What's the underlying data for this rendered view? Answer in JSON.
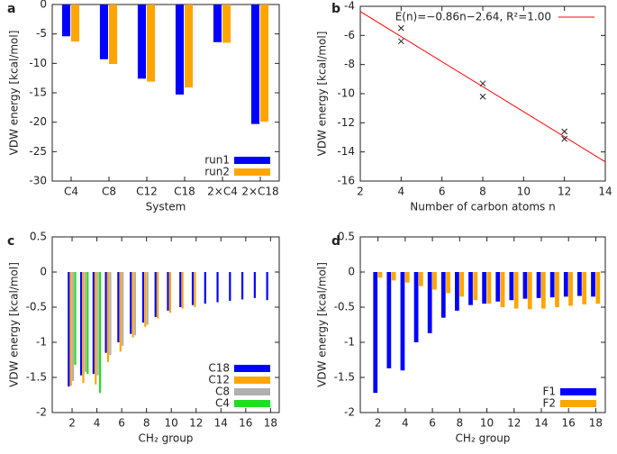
{
  "chart_data": [
    {
      "type": "bar",
      "panel": "a",
      "xlabel": "System",
      "ylabel": "VDW energy [kcal/mol]",
      "categories": [
        "C4",
        "C8",
        "C12",
        "C18",
        "2×C4",
        "2×C18"
      ],
      "series": [
        {
          "name": "run1",
          "color": "#0000ff",
          "values": [
            -5.4,
            -9.3,
            -12.6,
            -15.3,
            -6.4,
            -20.3
          ]
        },
        {
          "name": "run2",
          "color": "#ffa500",
          "values": [
            -6.3,
            -10.1,
            -13.1,
            -14.1,
            -6.5,
            -19.9
          ]
        }
      ],
      "ylim": [
        -30,
        0
      ],
      "yticks": [
        0,
        -5,
        -10,
        -15,
        -20,
        -25,
        -30
      ],
      "legend": "lower right"
    },
    {
      "type": "scatter",
      "panel": "b",
      "xlabel": "Number of carbon atoms n",
      "ylabel": "VDW energy [kcal/mol]",
      "x": [
        4,
        4,
        8,
        8,
        12,
        12
      ],
      "values": [
        -5.5,
        -6.4,
        -9.3,
        -10.2,
        -12.6,
        -13.1
      ],
      "color": "#222222",
      "fit": {
        "name": "E(n)=−0.86n−2.64, R²=1.00",
        "slope": -0.86,
        "intercept": -2.64,
        "color": "#ff0000"
      },
      "xlim": [
        2,
        14
      ],
      "xticks": [
        2,
        4,
        6,
        8,
        10,
        12,
        14
      ],
      "ylim": [
        -16,
        -4
      ],
      "yticks": [
        -4,
        -6,
        -8,
        -10,
        -12,
        -14,
        -16
      ],
      "legend": "upper right"
    },
    {
      "type": "bar",
      "panel": "c",
      "xlabel": "CH₂ group",
      "ylabel": "VDW energy [kcal/mol]",
      "x": [
        2,
        3,
        4,
        5,
        6,
        7,
        8,
        9,
        10,
        11,
        12,
        13,
        14,
        15,
        16,
        17,
        18
      ],
      "series": [
        {
          "name": "C18",
          "color": "#0000ff",
          "values": [
            -1.63,
            -1.47,
            -1.45,
            -1.15,
            -1.0,
            -0.88,
            -0.72,
            -0.64,
            -0.55,
            -0.5,
            -0.47,
            -0.45,
            -0.43,
            -0.41,
            -0.39,
            -0.37,
            -0.4
          ]
        },
        {
          "name": "C12",
          "color": "#ffa500",
          "values": [
            -1.62,
            -1.58,
            -1.6,
            -1.28,
            -1.13,
            -0.93,
            -0.78,
            -0.66,
            -0.58,
            -0.52,
            -0.5,
            null,
            null,
            null,
            null,
            null,
            null
          ]
        },
        {
          "name": "C8",
          "color": "#b0b0b0",
          "values": [
            -1.55,
            -1.42,
            -1.47,
            -1.18,
            -1.05,
            -0.9,
            -0.75,
            null,
            null,
            null,
            null,
            null,
            null,
            null,
            null,
            null,
            null
          ]
        },
        {
          "name": "C4",
          "color": "#22dd22",
          "values": [
            -1.32,
            -1.45,
            -1.72,
            null,
            null,
            null,
            null,
            null,
            null,
            null,
            null,
            null,
            null,
            null,
            null,
            null,
            null
          ]
        }
      ],
      "xlim": [
        0.4,
        18.7
      ],
      "xticks": [
        2,
        4,
        6,
        8,
        10,
        12,
        14,
        16,
        18
      ],
      "ylim": [
        -2,
        0.5
      ],
      "yticks": [
        0.5,
        0,
        -0.5,
        -1,
        -1.5,
        -2
      ],
      "legend": "lower right"
    },
    {
      "type": "bar",
      "panel": "d",
      "xlabel": "CH₂ group",
      "ylabel": "VDW energy [kcal/mol]",
      "x": [
        2,
        3,
        4,
        5,
        6,
        7,
        8,
        9,
        10,
        11,
        12,
        13,
        14,
        15,
        16,
        17,
        18
      ],
      "series": [
        {
          "name": "F1",
          "color": "#0000ff",
          "values": [
            -1.72,
            -1.37,
            -1.4,
            -1.0,
            -0.87,
            -0.65,
            -0.55,
            -0.47,
            -0.45,
            -0.42,
            -0.4,
            -0.38,
            -0.37,
            -0.36,
            -0.35,
            -0.34,
            -0.35
          ]
        },
        {
          "name": "F2",
          "color": "#ffa500",
          "values": [
            -0.08,
            -0.12,
            -0.15,
            -0.2,
            -0.25,
            -0.3,
            -0.35,
            -0.4,
            -0.45,
            -0.5,
            -0.52,
            -0.53,
            -0.52,
            -0.5,
            -0.48,
            -0.46,
            -0.45
          ]
        }
      ],
      "xlim": [
        0.7,
        18.7
      ],
      "xticks": [
        2,
        4,
        6,
        8,
        10,
        12,
        14,
        16,
        18
      ],
      "ylim": [
        -2,
        0.5
      ],
      "yticks": [
        0.5,
        0,
        -0.5,
        -1,
        -1.5,
        -2
      ],
      "legend": "lower right"
    }
  ]
}
